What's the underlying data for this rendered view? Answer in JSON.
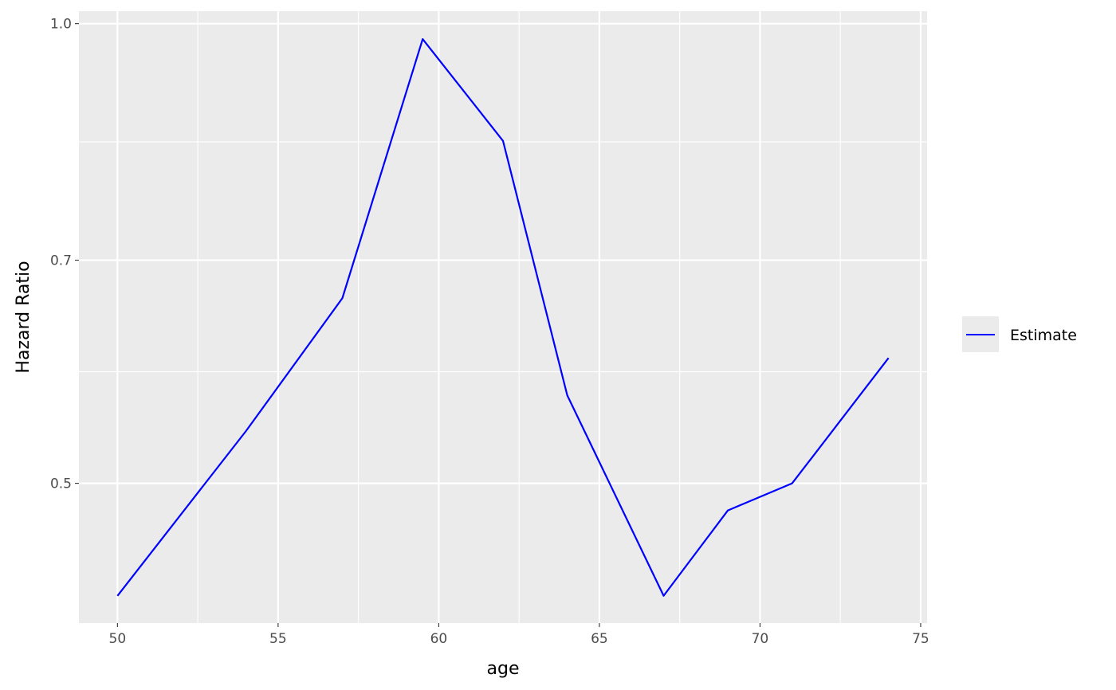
{
  "chart_data": {
    "type": "line",
    "title": "",
    "xlabel": "age",
    "ylabel": "Hazard Ratio",
    "xlim": [
      48.8,
      75.2
    ],
    "ylim": [
      0.405,
      1.019
    ],
    "y_scale": "log",
    "grid": true,
    "background": "#EBEBEB",
    "x_ticks": [
      50,
      55,
      60,
      65,
      70,
      75
    ],
    "x_tick_labels": [
      "50",
      "55",
      "60",
      "65",
      "70",
      "75"
    ],
    "y_ticks": [
      0.5,
      0.7,
      1.0
    ],
    "y_tick_labels": [
      "0.5",
      "0.7",
      "1.0"
    ],
    "legend_position": "right",
    "series": [
      {
        "name": "Estimate",
        "color": "#0000FF",
        "x": [
          50,
          54,
          57,
          59.5,
          62,
          64,
          67,
          69,
          71,
          74
        ],
        "y": [
          0.422,
          0.541,
          0.661,
          0.977,
          0.838,
          0.571,
          0.422,
          0.48,
          0.5,
          0.604
        ]
      }
    ]
  }
}
